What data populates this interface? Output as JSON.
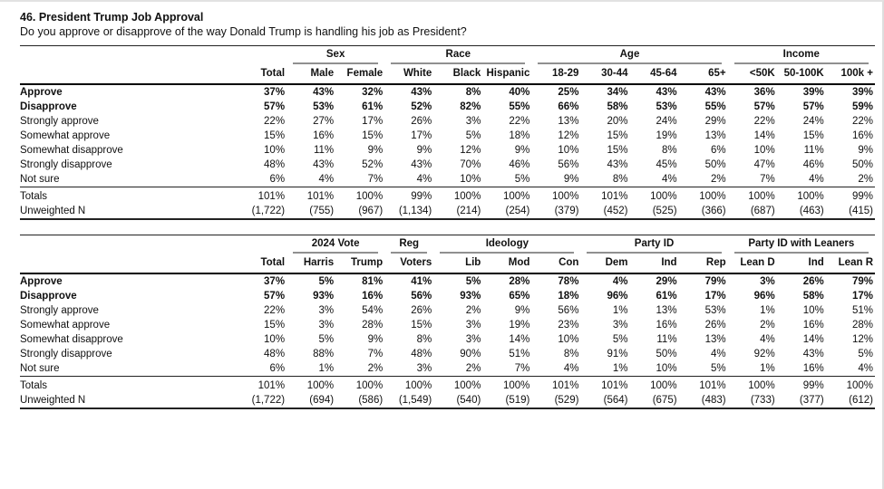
{
  "page": {
    "title": "46. President Trump Job Approval",
    "subtitle": "Do you approve or disapprove of the way Donald Trump is handling his job as President?"
  },
  "tables": [
    {
      "name": "demographics-crosstab",
      "groups": [
        {
          "label": "",
          "span": 1
        },
        {
          "label": "Sex",
          "span": 2
        },
        {
          "label": "Race",
          "span": 3
        },
        {
          "label": "Age",
          "span": 4
        },
        {
          "label": "Income",
          "span": 3
        }
      ],
      "columns": [
        "Total",
        "Male",
        "Female",
        "White",
        "Black",
        "Hispanic",
        "18-29",
        "30-44",
        "45-64",
        "65+",
        "<50K",
        "50-100K",
        "100k +"
      ],
      "rows": [
        {
          "label": "Approve",
          "bold": true,
          "values": [
            "37%",
            "43%",
            "32%",
            "43%",
            "8%",
            "40%",
            "25%",
            "34%",
            "43%",
            "43%",
            "36%",
            "39%",
            "39%"
          ]
        },
        {
          "label": "Disapprove",
          "bold": true,
          "values": [
            "57%",
            "53%",
            "61%",
            "52%",
            "82%",
            "55%",
            "66%",
            "58%",
            "53%",
            "55%",
            "57%",
            "57%",
            "59%"
          ]
        },
        {
          "label": "Strongly approve",
          "bold": false,
          "values": [
            "22%",
            "27%",
            "17%",
            "26%",
            "3%",
            "22%",
            "13%",
            "20%",
            "24%",
            "29%",
            "22%",
            "24%",
            "22%"
          ]
        },
        {
          "label": "Somewhat approve",
          "bold": false,
          "values": [
            "15%",
            "16%",
            "15%",
            "17%",
            "5%",
            "18%",
            "12%",
            "15%",
            "19%",
            "13%",
            "14%",
            "15%",
            "16%"
          ]
        },
        {
          "label": "Somewhat disapprove",
          "bold": false,
          "values": [
            "10%",
            "11%",
            "9%",
            "9%",
            "12%",
            "9%",
            "10%",
            "15%",
            "8%",
            "6%",
            "10%",
            "11%",
            "9%"
          ]
        },
        {
          "label": "Strongly disapprove",
          "bold": false,
          "values": [
            "48%",
            "43%",
            "52%",
            "43%",
            "70%",
            "46%",
            "56%",
            "43%",
            "45%",
            "50%",
            "47%",
            "46%",
            "50%"
          ]
        },
        {
          "label": "Not sure",
          "bold": false,
          "values": [
            "6%",
            "4%",
            "7%",
            "4%",
            "10%",
            "5%",
            "9%",
            "8%",
            "4%",
            "2%",
            "7%",
            "4%",
            "2%"
          ]
        }
      ],
      "footer_rows": [
        {
          "label": "Totals",
          "values": [
            "101%",
            "101%",
            "100%",
            "99%",
            "100%",
            "100%",
            "100%",
            "101%",
            "100%",
            "100%",
            "100%",
            "100%",
            "99%"
          ]
        },
        {
          "label": "Unweighted N",
          "values": [
            "(1,722)",
            "(755)",
            "(967)",
            "(1,134)",
            "(214)",
            "(254)",
            "(379)",
            "(452)",
            "(525)",
            "(366)",
            "(687)",
            "(463)",
            "(415)"
          ]
        }
      ]
    },
    {
      "name": "politics-crosstab",
      "groups": [
        {
          "label": "",
          "span": 1
        },
        {
          "label": "2024 Vote",
          "span": 2
        },
        {
          "label": "Reg",
          "span": 1
        },
        {
          "label": "Ideology",
          "span": 3
        },
        {
          "label": "Party ID",
          "span": 3
        },
        {
          "label": "Party ID with Leaners",
          "span": 3
        }
      ],
      "columns": [
        "Total",
        "Harris",
        "Trump",
        "Voters",
        "Lib",
        "Mod",
        "Con",
        "Dem",
        "Ind",
        "Rep",
        "Lean D",
        "Ind",
        "Lean R"
      ],
      "rows": [
        {
          "label": "Approve",
          "bold": true,
          "values": [
            "37%",
            "5%",
            "81%",
            "41%",
            "5%",
            "28%",
            "78%",
            "4%",
            "29%",
            "79%",
            "3%",
            "26%",
            "79%"
          ]
        },
        {
          "label": "Disapprove",
          "bold": true,
          "values": [
            "57%",
            "93%",
            "16%",
            "56%",
            "93%",
            "65%",
            "18%",
            "96%",
            "61%",
            "17%",
            "96%",
            "58%",
            "17%"
          ]
        },
        {
          "label": "Strongly approve",
          "bold": false,
          "values": [
            "22%",
            "3%",
            "54%",
            "26%",
            "2%",
            "9%",
            "56%",
            "1%",
            "13%",
            "53%",
            "1%",
            "10%",
            "51%"
          ]
        },
        {
          "label": "Somewhat approve",
          "bold": false,
          "values": [
            "15%",
            "3%",
            "28%",
            "15%",
            "3%",
            "19%",
            "23%",
            "3%",
            "16%",
            "26%",
            "2%",
            "16%",
            "28%"
          ]
        },
        {
          "label": "Somewhat disapprove",
          "bold": false,
          "values": [
            "10%",
            "5%",
            "9%",
            "8%",
            "3%",
            "14%",
            "10%",
            "5%",
            "11%",
            "13%",
            "4%",
            "14%",
            "12%"
          ]
        },
        {
          "label": "Strongly disapprove",
          "bold": false,
          "values": [
            "48%",
            "88%",
            "7%",
            "48%",
            "90%",
            "51%",
            "8%",
            "91%",
            "50%",
            "4%",
            "92%",
            "43%",
            "5%"
          ]
        },
        {
          "label": "Not sure",
          "bold": false,
          "values": [
            "6%",
            "1%",
            "2%",
            "3%",
            "2%",
            "7%",
            "4%",
            "1%",
            "10%",
            "5%",
            "1%",
            "16%",
            "4%"
          ]
        }
      ],
      "footer_rows": [
        {
          "label": "Totals",
          "values": [
            "101%",
            "100%",
            "100%",
            "100%",
            "100%",
            "100%",
            "101%",
            "101%",
            "100%",
            "101%",
            "100%",
            "99%",
            "100%"
          ]
        },
        {
          "label": "Unweighted N",
          "values": [
            "(1,722)",
            "(694)",
            "(586)",
            "(1,549)",
            "(540)",
            "(519)",
            "(529)",
            "(564)",
            "(675)",
            "(483)",
            "(733)",
            "(377)",
            "(612)"
          ]
        }
      ]
    }
  ]
}
